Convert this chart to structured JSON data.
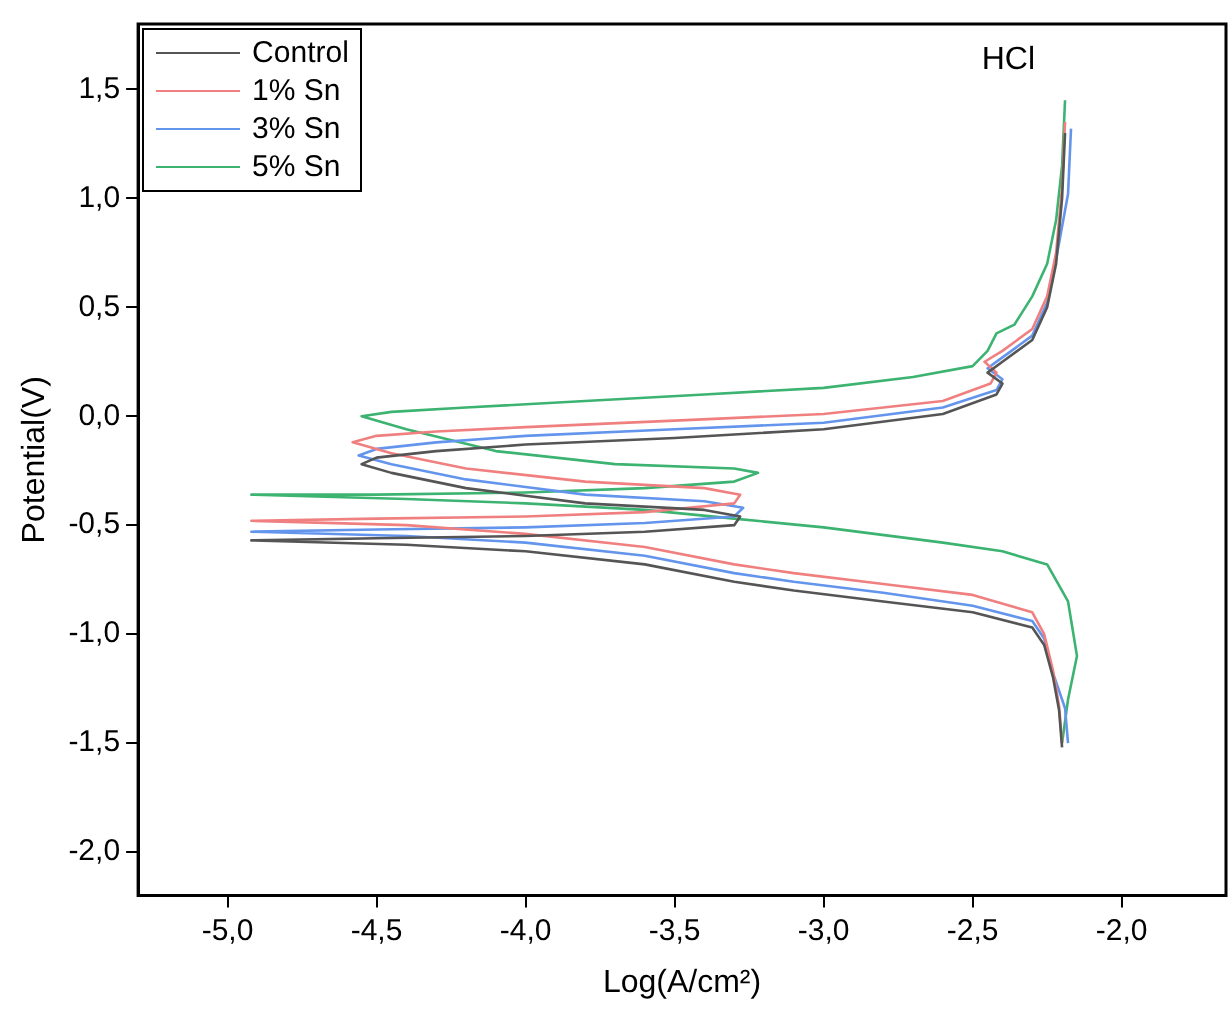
{
  "chart_data": {
    "type": "line",
    "title": "HCl",
    "xlabel": "Log(A/cm²)",
    "ylabel": "Potential(V)",
    "legend": "top left",
    "grid": false,
    "marker": "none",
    "line_style": "solid",
    "xlim": [
      -5.3,
      -1.65
    ],
    "ylim": [
      -2.2,
      1.8
    ],
    "xticks": [
      {
        "value": -5,
        "label": "-5,0"
      },
      {
        "value": -4.5,
        "label": "-4,5"
      },
      {
        "value": -4,
        "label": "-4,0"
      },
      {
        "value": -3.5,
        "label": "-3,5"
      },
      {
        "value": -3,
        "label": "-3,0"
      },
      {
        "value": -2.5,
        "label": "-2,5"
      },
      {
        "value": -2,
        "label": "-2,0"
      }
    ],
    "yticks": [
      {
        "value": -2,
        "label": "-2,0"
      },
      {
        "value": -1.5,
        "label": "-1,5"
      },
      {
        "value": -1,
        "label": "-1,0"
      },
      {
        "value": -0.5,
        "label": "-0,5"
      },
      {
        "value": 0,
        "label": "0,0"
      },
      {
        "value": 0.5,
        "label": "0,5"
      },
      {
        "value": 1,
        "label": "1,0"
      },
      {
        "value": 1.5,
        "label": "1,5"
      }
    ],
    "series": [
      {
        "name": "Control",
        "color": "#555555",
        "x": [
          -2.2,
          -2.21,
          -2.23,
          -2.26,
          -2.3,
          -2.5,
          -2.8,
          -3.1,
          -3.3,
          -3.6,
          -4.0,
          -4.4,
          -4.92,
          -4.5,
          -4.0,
          -3.6,
          -3.3,
          -3.28,
          -3.4,
          -3.8,
          -4.2,
          -4.45,
          -4.55,
          -4.5,
          -4.3,
          -4.0,
          -3.5,
          -3.0,
          -2.6,
          -2.42,
          -2.4,
          -2.45,
          -2.4,
          -2.3,
          -2.25,
          -2.22,
          -2.2,
          -2.19
        ],
        "values": [
          -1.52,
          -1.35,
          -1.2,
          -1.05,
          -0.97,
          -0.9,
          -0.85,
          -0.8,
          -0.76,
          -0.68,
          -0.62,
          -0.59,
          -0.57,
          -0.56,
          -0.55,
          -0.53,
          -0.5,
          -0.46,
          -0.43,
          -0.4,
          -0.33,
          -0.26,
          -0.22,
          -0.19,
          -0.16,
          -0.13,
          -0.1,
          -0.06,
          0.01,
          0.1,
          0.15,
          0.2,
          0.25,
          0.35,
          0.5,
          0.7,
          1.0,
          1.3
        ]
      },
      {
        "name": "1% Sn",
        "color": "#f08080",
        "x": [
          -2.2,
          -2.21,
          -2.23,
          -2.26,
          -2.3,
          -2.5,
          -2.8,
          -3.1,
          -3.3,
          -3.6,
          -4.0,
          -4.4,
          -4.92,
          -4.5,
          -4.0,
          -3.6,
          -3.3,
          -3.28,
          -3.4,
          -3.8,
          -4.2,
          -4.45,
          -4.58,
          -4.5,
          -4.3,
          -4.0,
          -3.5,
          -3.0,
          -2.6,
          -2.44,
          -2.42,
          -2.46,
          -2.4,
          -2.3,
          -2.25,
          -2.22,
          -2.2,
          -2.19
        ],
        "values": [
          -1.5,
          -1.33,
          -1.17,
          -1.0,
          -0.9,
          -0.82,
          -0.77,
          -0.72,
          -0.68,
          -0.6,
          -0.54,
          -0.5,
          -0.48,
          -0.47,
          -0.46,
          -0.44,
          -0.4,
          -0.36,
          -0.33,
          -0.3,
          -0.24,
          -0.17,
          -0.12,
          -0.09,
          -0.07,
          -0.05,
          -0.02,
          0.01,
          0.07,
          0.15,
          0.2,
          0.25,
          0.3,
          0.4,
          0.55,
          0.75,
          1.05,
          1.35
        ]
      },
      {
        "name": "3% Sn",
        "color": "#6495ed",
        "x": [
          -2.18,
          -2.19,
          -2.23,
          -2.26,
          -2.3,
          -2.5,
          -2.8,
          -3.1,
          -3.3,
          -3.6,
          -4.0,
          -4.4,
          -4.92,
          -4.5,
          -4.0,
          -3.6,
          -3.3,
          -3.27,
          -3.4,
          -3.8,
          -4.2,
          -4.45,
          -4.56,
          -4.5,
          -4.3,
          -4.0,
          -3.5,
          -3.0,
          -2.6,
          -2.42,
          -2.4,
          -2.45,
          -2.4,
          -2.3,
          -2.25,
          -2.22,
          -2.18,
          -2.17
        ],
        "values": [
          -1.5,
          -1.34,
          -1.18,
          -1.02,
          -0.94,
          -0.87,
          -0.81,
          -0.76,
          -0.72,
          -0.64,
          -0.58,
          -0.55,
          -0.53,
          -0.52,
          -0.51,
          -0.49,
          -0.46,
          -0.42,
          -0.39,
          -0.36,
          -0.29,
          -0.22,
          -0.18,
          -0.15,
          -0.12,
          -0.09,
          -0.06,
          -0.03,
          0.04,
          0.12,
          0.17,
          0.22,
          0.27,
          0.37,
          0.52,
          0.72,
          1.02,
          1.32
        ]
      },
      {
        "name": "5% Sn",
        "color": "#3cb371",
        "x": [
          -2.2,
          -2.18,
          -2.15,
          -2.18,
          -2.25,
          -2.4,
          -2.6,
          -3.0,
          -3.3,
          -3.6,
          -4.0,
          -4.4,
          -4.92,
          -4.5,
          -4.0,
          -3.6,
          -3.3,
          -3.22,
          -3.3,
          -3.7,
          -4.1,
          -4.4,
          -4.55,
          -4.45,
          -4.2,
          -3.8,
          -3.4,
          -3.0,
          -2.7,
          -2.5,
          -2.45,
          -2.42,
          -2.36,
          -2.3,
          -2.25,
          -2.22,
          -2.2,
          -2.19
        ],
        "values": [
          -1.5,
          -1.3,
          -1.1,
          -0.85,
          -0.68,
          -0.62,
          -0.58,
          -0.51,
          -0.47,
          -0.43,
          -0.4,
          -0.38,
          -0.36,
          -0.36,
          -0.35,
          -0.33,
          -0.3,
          -0.26,
          -0.24,
          -0.22,
          -0.16,
          -0.06,
          0.0,
          0.02,
          0.04,
          0.07,
          0.1,
          0.13,
          0.18,
          0.23,
          0.3,
          0.38,
          0.42,
          0.55,
          0.7,
          0.9,
          1.15,
          1.45
        ]
      }
    ]
  }
}
